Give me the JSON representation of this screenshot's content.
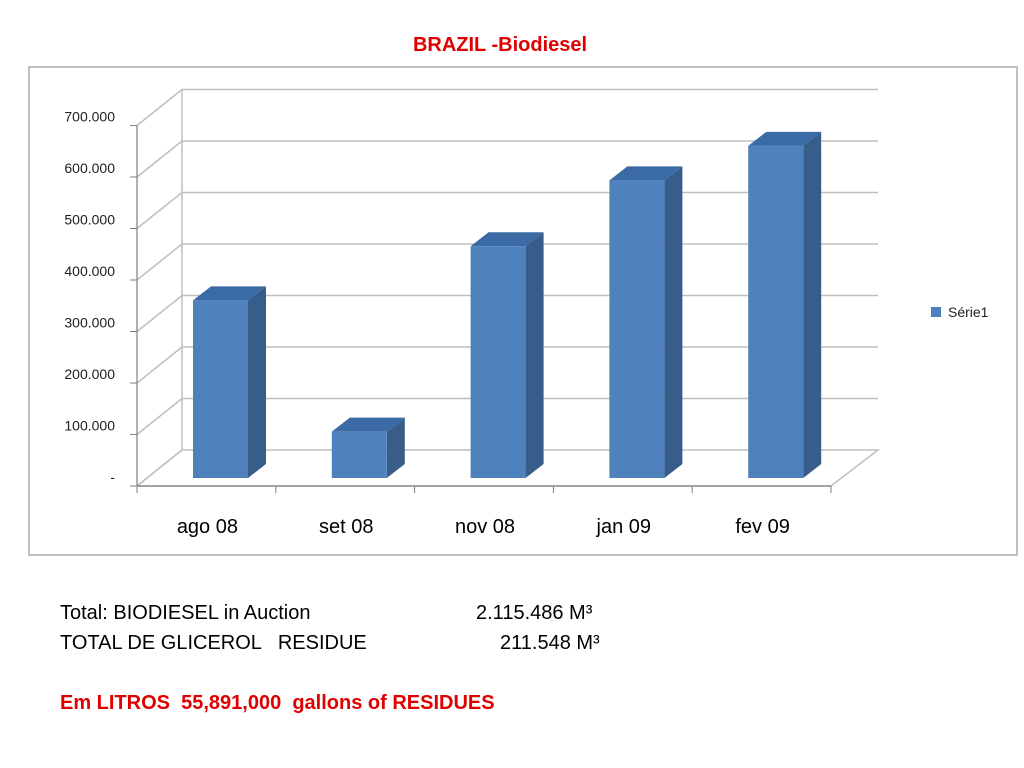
{
  "slide": {
    "title": "BRAZIL -Biodiesel"
  },
  "chart_data": {
    "type": "bar",
    "categories": [
      "ago 08",
      "set 08",
      "nov 08",
      "jan 09",
      "fev 09"
    ],
    "series": [
      {
        "name": "Série1",
        "values": [
          345000,
          90000,
          450000,
          578000,
          645000
        ]
      }
    ],
    "yticks": [
      {
        "value": 0,
        "label": "-"
      },
      {
        "value": 100000,
        "label": "100.000"
      },
      {
        "value": 200000,
        "label": "200.000"
      },
      {
        "value": 300000,
        "label": "300.000"
      },
      {
        "value": 400000,
        "label": "400.000"
      },
      {
        "value": 500000,
        "label": "500.000"
      },
      {
        "value": 600000,
        "label": "600.000"
      },
      {
        "value": 700000,
        "label": "700.000"
      }
    ],
    "ylim": [
      0,
      700000
    ],
    "grid": true,
    "legend": "right",
    "colors": {
      "bar_front": "#4f81bd",
      "bar_side": "#385d8a",
      "bar_top": "#3a6ba5"
    }
  },
  "info": {
    "line1_label": "Total: BIODIESEL in Auction",
    "line1_value": "2.115.486 M³",
    "line2_label": "TOTAL DE GLICEROL   RESIDUE",
    "line2_value": "211.548 M³",
    "line3": "Em LITROS  55,891,000  gallons of RESIDUES"
  }
}
